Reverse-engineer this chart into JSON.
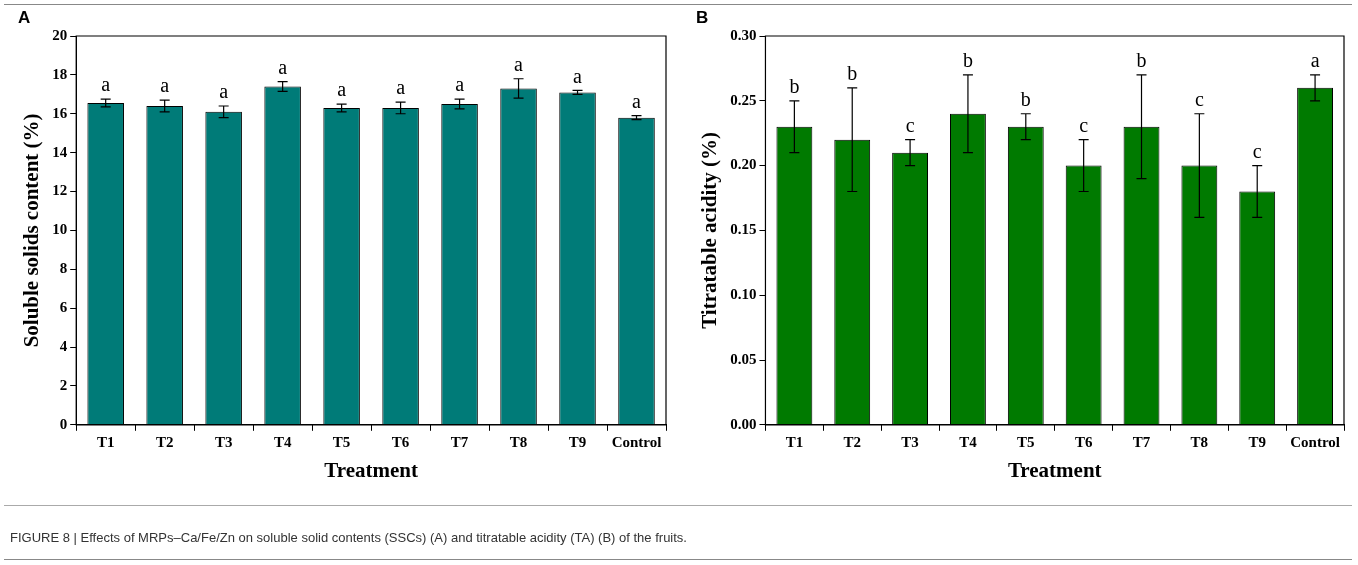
{
  "chart_data": [
    {
      "type": "bar",
      "title": "A",
      "xlabel": "Treatment",
      "ylabel": "Soluble solids content (%)",
      "categories": [
        "T1",
        "T2",
        "T3",
        "T4",
        "T5",
        "T6",
        "T7",
        "T8",
        "T9",
        "Control"
      ],
      "values": [
        16.55,
        16.4,
        16.1,
        17.4,
        16.3,
        16.3,
        16.5,
        17.3,
        17.1,
        15.8
      ],
      "errors": [
        0.2,
        0.3,
        0.3,
        0.25,
        0.2,
        0.3,
        0.25,
        0.5,
        0.1,
        0.1
      ],
      "color": "#007b78",
      "ylim": [
        0,
        20
      ],
      "yticks": [
        0,
        2,
        4,
        6,
        8,
        10,
        12,
        14,
        16,
        18,
        20
      ],
      "grid": false,
      "annotations": [
        {
          "text": "a",
          "x": "T1",
          "y": 16.75
        },
        {
          "text": "a",
          "x": "T2",
          "y": 16.7
        },
        {
          "text": "a",
          "x": "T3",
          "y": 16.4
        },
        {
          "text": "a",
          "x": "T4",
          "y": 17.65
        },
        {
          "text": "a",
          "x": "T5",
          "y": 16.5
        },
        {
          "text": "a",
          "x": "T6",
          "y": 16.6
        },
        {
          "text": "a",
          "x": "T7",
          "y": 16.75
        },
        {
          "text": "a",
          "x": "T8",
          "y": 17.8
        },
        {
          "text": "a",
          "x": "T9",
          "y": 17.2
        },
        {
          "text": "a",
          "x": "Control",
          "y": 15.9
        },
        "FIGURE 8 | Effects of MRPs–Ca/Fe/Zn on soluble solid contents (SSCs) (A) and titratable acidity (TA) (B) of the fruits."
      ]
    },
    {
      "type": "bar",
      "title": "B",
      "xlabel": "Treatment",
      "ylabel": "Titratable acidity (%)",
      "categories": [
        "T1",
        "T2",
        "T3",
        "T4",
        "T5",
        "T6",
        "T7",
        "T8",
        "T9",
        "Control"
      ],
      "values": [
        0.23,
        0.22,
        0.21,
        0.24,
        0.23,
        0.2,
        0.23,
        0.2,
        0.18,
        0.26
      ],
      "errors": [
        0.02,
        0.04,
        0.01,
        0.03,
        0.01,
        0.02,
        0.04,
        0.04,
        0.02,
        0.01
      ],
      "color": "#007a00",
      "ylim": [
        0,
        0.3
      ],
      "yticks": [
        {
          "value": 0,
          "label": "0.00"
        },
        {
          "value": 0.05,
          "label": "0.05"
        },
        {
          "value": 0.1,
          "label": "0.10"
        },
        {
          "value": 0.15,
          "label": "0.15"
        },
        {
          "value": 0.2,
          "label": "0.20"
        },
        {
          "value": 0.25,
          "label": "0.25"
        },
        {
          "value": 0.3,
          "label": "0.30"
        }
      ],
      "grid": false,
      "annotations": [
        {
          "text": "b",
          "x": "T1",
          "y": 0.25
        },
        {
          "text": "b",
          "x": "T2",
          "y": 0.26
        },
        {
          "text": "c",
          "x": "T3",
          "y": 0.22
        },
        {
          "text": "b",
          "x": "T4",
          "y": 0.27
        },
        {
          "text": "b",
          "x": "T5",
          "y": 0.24
        },
        {
          "text": "c",
          "x": "T6",
          "y": 0.22
        },
        {
          "text": "b",
          "x": "T7",
          "y": 0.27
        },
        {
          "text": "c",
          "x": "T8",
          "y": 0.24
        },
        {
          "text": "c",
          "x": "T9",
          "y": 0.2
        },
        {
          "text": "a",
          "x": "Control",
          "y": 0.27
        }
      ]
    }
  ]
}
